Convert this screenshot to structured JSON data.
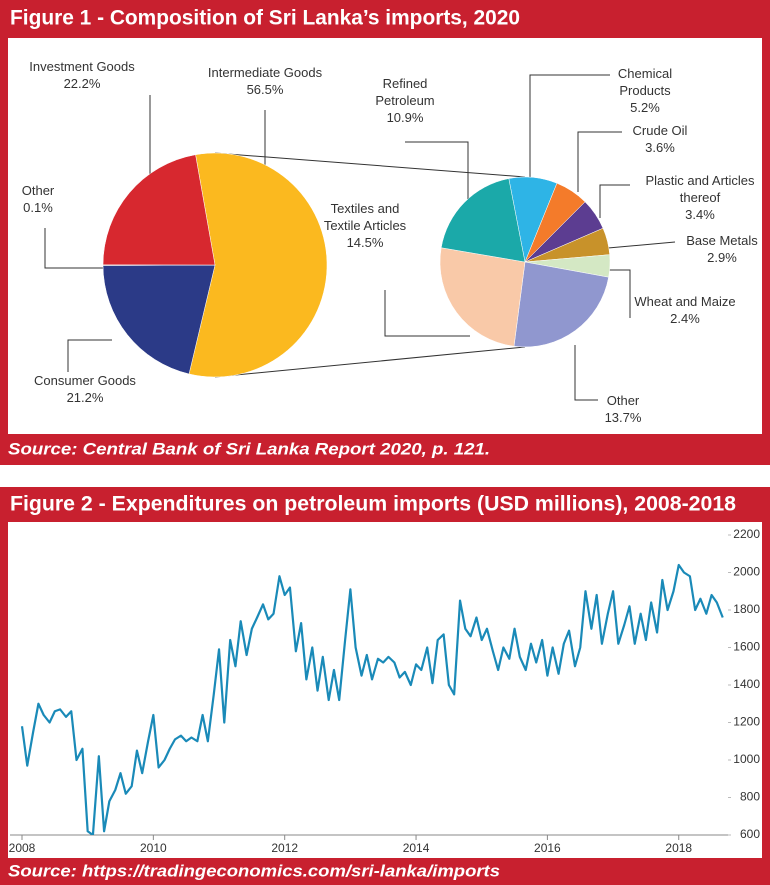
{
  "chart_data": [
    {
      "type": "pie",
      "title": "Figure 1 - Composition of Sri Lanka’s imports, 2020",
      "source": "Source: Central Bank of Sri Lanka Report 2020, p. 121.",
      "categories": [
        "Intermediate Goods",
        "Consumer Goods",
        "Other",
        "Investment Goods"
      ],
      "values": [
        56.5,
        21.2,
        0.1,
        22.2
      ],
      "value_labels": [
        "56.5%",
        "21.2%",
        "0.1%",
        "22.2%"
      ],
      "colors": [
        "#fbb91f",
        "#2b3a87",
        "#888888",
        "#d7282f"
      ]
    },
    {
      "type": "pie",
      "categories": [
        "Chemical Products",
        "Crude Oil",
        "Plastic and Articles thereof",
        "Base Metals",
        "Wheat and Maize",
        "Other",
        "Textiles and Textile Articles",
        "Refined Petroleum"
      ],
      "values": [
        5.2,
        3.6,
        3.4,
        2.9,
        2.4,
        13.7,
        14.5,
        10.9
      ],
      "value_labels": [
        "5.2%",
        "3.6%",
        "3.4%",
        "2.9%",
        "2.4%",
        "13.7%",
        "14.5%",
        "10.9%"
      ],
      "colors": [
        "#2eb4e6",
        "#f47b2a",
        "#5c3d91",
        "#c8922a",
        "#d4e8c4",
        "#9097cf",
        "#f9c9a8",
        "#1ba9a9"
      ]
    },
    {
      "type": "line",
      "title": "Figure 2 - Expenditures on petroleum imports (USD millions), 2008-2018",
      "source": "Source: https://tradingeconomics.com/sri-lanka/imports",
      "color": "#1a8ab8",
      "x": [
        2008,
        2008.08,
        2008.17,
        2008.25,
        2008.33,
        2008.42,
        2008.5,
        2008.58,
        2008.67,
        2008.75,
        2008.83,
        2008.92,
        2009,
        2009.08,
        2009.17,
        2009.25,
        2009.33,
        2009.42,
        2009.5,
        2009.58,
        2009.67,
        2009.75,
        2009.83,
        2009.92,
        2010,
        2010.08,
        2010.17,
        2010.25,
        2010.33,
        2010.42,
        2010.5,
        2010.58,
        2010.67,
        2010.75,
        2010.83,
        2010.92,
        2011,
        2011.08,
        2011.17,
        2011.25,
        2011.33,
        2011.42,
        2011.5,
        2011.58,
        2011.67,
        2011.75,
        2011.83,
        2011.92,
        2012,
        2012.08,
        2012.17,
        2012.25,
        2012.33,
        2012.42,
        2012.5,
        2012.58,
        2012.67,
        2012.75,
        2012.83,
        2012.92,
        2013,
        2013.08,
        2013.17,
        2013.25,
        2013.33,
        2013.42,
        2013.5,
        2013.58,
        2013.67,
        2013.75,
        2013.83,
        2013.92,
        2014,
        2014.08,
        2014.17,
        2014.25,
        2014.33,
        2014.42,
        2014.5,
        2014.58,
        2014.67,
        2014.75,
        2014.83,
        2014.92,
        2015,
        2015.08,
        2015.17,
        2015.25,
        2015.33,
        2015.42,
        2015.5,
        2015.58,
        2015.67,
        2015.75,
        2015.83,
        2015.92,
        2016,
        2016.08,
        2016.17,
        2016.25,
        2016.33,
        2016.42,
        2016.5,
        2016.58,
        2016.67,
        2016.75,
        2016.83,
        2016.92,
        2017,
        2017.08,
        2017.17,
        2017.25,
        2017.33,
        2017.42,
        2017.5,
        2017.58,
        2017.67,
        2017.75,
        2017.83,
        2017.92,
        2018,
        2018.08,
        2018.17,
        2018.25,
        2018.33,
        2018.42,
        2018.5,
        2018.58,
        2018.67
      ],
      "values": [
        1180,
        970,
        1150,
        1300,
        1240,
        1200,
        1260,
        1270,
        1230,
        1260,
        1000,
        1060,
        620,
        600,
        1020,
        620,
        780,
        840,
        930,
        820,
        860,
        1050,
        930,
        1100,
        1240,
        960,
        1000,
        1060,
        1110,
        1130,
        1100,
        1120,
        1100,
        1240,
        1100,
        1350,
        1590,
        1200,
        1640,
        1500,
        1740,
        1560,
        1700,
        1760,
        1830,
        1750,
        1780,
        1980,
        1880,
        1920,
        1580,
        1730,
        1430,
        1600,
        1370,
        1550,
        1320,
        1480,
        1320,
        1640,
        1910,
        1600,
        1450,
        1560,
        1430,
        1540,
        1520,
        1550,
        1520,
        1440,
        1470,
        1400,
        1510,
        1480,
        1600,
        1410,
        1640,
        1670,
        1400,
        1350,
        1850,
        1700,
        1660,
        1760,
        1640,
        1700,
        1580,
        1480,
        1600,
        1540,
        1700,
        1550,
        1480,
        1620,
        1520,
        1640,
        1450,
        1600,
        1460,
        1620,
        1690,
        1500,
        1600,
        1900,
        1700,
        1880,
        1620,
        1780,
        1900,
        1620,
        1720,
        1820,
        1620,
        1780,
        1640,
        1840,
        1680,
        1960,
        1800,
        1900,
        2040,
        2000,
        1980,
        1800,
        1860,
        1780,
        1880,
        1840,
        1760
      ],
      "xlim": [
        2008,
        2018.75
      ],
      "xticks": [
        2008,
        2010,
        2012,
        2014,
        2016,
        2018
      ],
      "ylim": [
        600,
        2200
      ],
      "yticks": [
        600,
        800,
        1000,
        1200,
        1400,
        1600,
        1800,
        2000,
        2200
      ],
      "grid": false
    }
  ]
}
